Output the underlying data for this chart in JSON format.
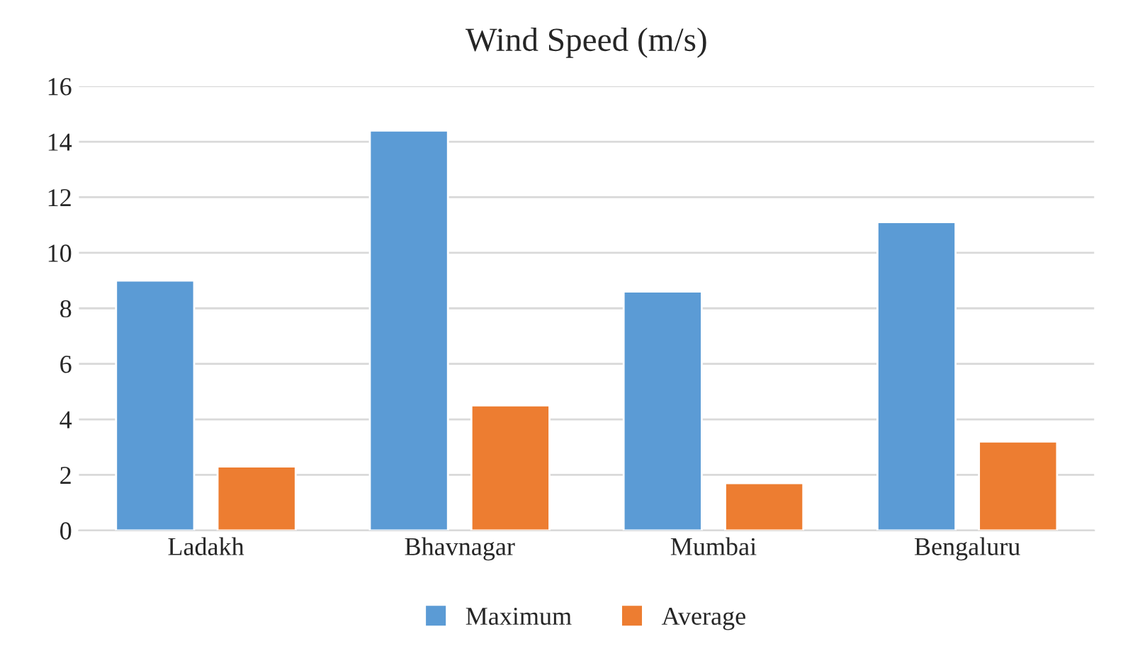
{
  "chart_data": {
    "type": "bar",
    "title": "Wind Speed (m/s)",
    "categories": [
      "Ladakh",
      "Bhavnagar",
      "Mumbai",
      "Bengaluru"
    ],
    "series": [
      {
        "name": "Maximum",
        "color": "#5b9bd5",
        "values": [
          9.0,
          14.4,
          8.6,
          11.1
        ]
      },
      {
        "name": "Average",
        "color": "#ed7d31",
        "values": [
          2.3,
          4.5,
          1.7,
          3.2
        ]
      }
    ],
    "ylim": [
      0,
      16
    ],
    "yticks": [
      0,
      2,
      4,
      6,
      8,
      10,
      12,
      14,
      16
    ],
    "grid": "y",
    "legend": "bottom"
  }
}
